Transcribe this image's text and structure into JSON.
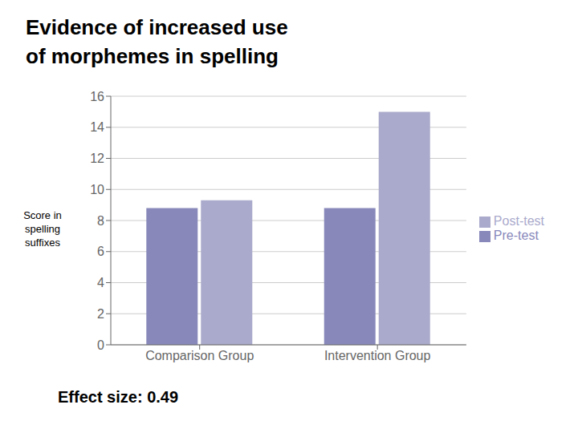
{
  "chart_data": {
    "type": "bar",
    "title": "Evidence of increased use\nof morphemes in spelling",
    "annotations": [
      "Effect size: 0.49"
    ],
    "categories": [
      "Comparison Group",
      "Intervention Group"
    ],
    "series": [
      {
        "name": "Pre-test",
        "color": "#8888bb",
        "values": [
          8.8,
          8.8
        ]
      },
      {
        "name": "Post-test",
        "color": "#aaaacc",
        "values": [
          9.3,
          15.0
        ]
      }
    ],
    "ylabel": "Score in\nspelling\nsuffixes",
    "ylim": [
      0,
      16
    ],
    "yticks": [
      0,
      2,
      4,
      6,
      8,
      10,
      12,
      14,
      16
    ],
    "grid": true,
    "legend": "right"
  }
}
